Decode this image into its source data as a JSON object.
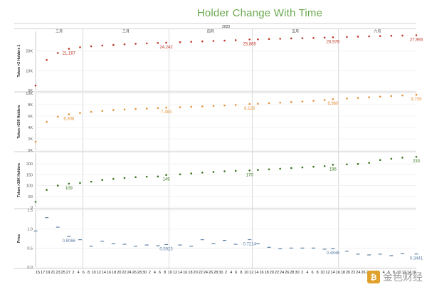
{
  "title": "Holder Change With Time",
  "chart_data": {
    "type": "scatter",
    "title": "Holder Change With Time",
    "year_label": "2023",
    "month_labels": [
      "三月",
      "三月",
      "四月",
      "五月",
      "六月"
    ],
    "x_tick_labels": [
      "15",
      "17",
      "19",
      "21",
      "23",
      "25",
      "27",
      "2",
      "4",
      "6",
      "8",
      "10",
      "12",
      "14",
      "16",
      "18",
      "20",
      "22",
      "24",
      "26",
      "28",
      "30",
      "2",
      "4",
      "6",
      "8",
      "10",
      "12",
      "14",
      "16",
      "18",
      "20",
      "22",
      "24",
      "26",
      "28",
      "30",
      "2",
      "4",
      "6",
      "8",
      "10",
      "12",
      "14",
      "16",
      "18",
      "20",
      "22",
      "24",
      "26",
      "28",
      "30",
      "2",
      "4",
      "6",
      "8",
      "10",
      "12",
      "14",
      "16",
      "18",
      "20",
      "22",
      "24",
      "26",
      "28",
      "30",
      "2",
      "4",
      "6",
      "8",
      "10",
      "12",
      "14",
      "16"
    ],
    "panels": [
      {
        "ylabel": "Token >2 Holders 1",
        "color": "#c0392b",
        "ylim": [
          0,
          30000
        ],
        "yticks": [
          0,
          10000,
          20000
        ],
        "ytick_labels": [
          "0K",
          "10K",
          "20K"
        ],
        "annotations": [
          {
            "day": 12,
            "value": 21167,
            "text": "21,167"
          },
          {
            "day": 47,
            "value": 24242,
            "text": "24,242"
          },
          {
            "day": 77,
            "value": 25885,
            "text": "25,885"
          },
          {
            "day": 107,
            "value": 26978,
            "text": "26,978"
          },
          {
            "day": 137,
            "value": 27993,
            "text": "27,993"
          }
        ]
      },
      {
        "ylabel": "Token >200 Holders",
        "color": "#e69138",
        "ylim": [
          0,
          10000
        ],
        "yticks": [
          0,
          2000,
          4000,
          6000,
          8000,
          10000
        ],
        "ytick_labels": [
          "0K",
          "2K",
          "4K",
          "6K",
          "8K",
          "10K"
        ],
        "annotations": [
          {
            "day": 12,
            "value": 6308,
            "text": "6,308"
          },
          {
            "day": 47,
            "value": 7483,
            "text": "7,483"
          },
          {
            "day": 77,
            "value": 8126,
            "text": "8,126"
          },
          {
            "day": 107,
            "value": 8980,
            "text": "8,980"
          },
          {
            "day": 137,
            "value": 9739,
            "text": "9,739"
          }
        ]
      },
      {
        "ylabel": "Token >10K Holders",
        "color": "#38761d",
        "ylim": [
          0,
          250
        ],
        "yticks": [
          0,
          50,
          100,
          150,
          200
        ],
        "ytick_labels": [
          "0",
          "50",
          "100",
          "150",
          "200"
        ],
        "annotations": [
          {
            "day": 12,
            "value": 109,
            "text": "109"
          },
          {
            "day": 47,
            "value": 149,
            "text": "149"
          },
          {
            "day": 77,
            "value": 170,
            "text": "170"
          },
          {
            "day": 107,
            "value": 196,
            "text": "196"
          },
          {
            "day": 137,
            "value": 233,
            "text": "233"
          }
        ]
      },
      {
        "ylabel": "Price",
        "color": "#5b7fa6",
        "ylim": [
          0,
          1.5
        ],
        "yticks": [
          0,
          0.5,
          1.0,
          1.5
        ],
        "ytick_labels": [
          "0.0",
          "0.5",
          "1.0",
          "1.5"
        ],
        "annotations": [
          {
            "day": 12,
            "value": 0.8066,
            "text": "0.8066"
          },
          {
            "day": 47,
            "value": 0.5923,
            "text": "0.5923"
          },
          {
            "day": 77,
            "value": 0.7214,
            "text": "0.7214"
          },
          {
            "day": 107,
            "value": 0.4846,
            "text": "0.4846"
          },
          {
            "day": 137,
            "value": 0.3441,
            "text": "0.3441"
          }
        ]
      }
    ],
    "x": [
      0,
      4,
      8,
      12,
      16,
      20,
      24,
      28,
      32,
      36,
      40,
      44,
      47,
      52,
      56,
      60,
      64,
      68,
      72,
      77,
      80,
      84,
      88,
      92,
      96,
      100,
      104,
      107,
      112,
      116,
      120,
      124,
      128,
      132,
      137
    ],
    "series": [
      {
        "name": "Token >2 Holders 1",
        "values": [
          2500,
          15500,
          19000,
          21167,
          21900,
          22400,
          22800,
          23100,
          23400,
          23700,
          23900,
          24100,
          24242,
          24500,
          24700,
          24900,
          25100,
          25300,
          25500,
          25885,
          25950,
          26100,
          26250,
          26400,
          26500,
          26650,
          26800,
          26978,
          27150,
          27300,
          27450,
          27600,
          27750,
          27850,
          27993
        ]
      },
      {
        "name": "Token >200 Holders",
        "values": [
          1500,
          5000,
          5900,
          6308,
          6550,
          6750,
          6900,
          7050,
          7150,
          7250,
          7320,
          7400,
          7483,
          7560,
          7630,
          7700,
          7780,
          7860,
          7950,
          8126,
          8170,
          8260,
          8360,
          8460,
          8560,
          8680,
          8800,
          8980,
          9080,
          9190,
          9300,
          9420,
          9520,
          9620,
          9739
        ]
      },
      {
        "name": "Token >10K Holders",
        "values": [
          25,
          80,
          100,
          109,
          112,
          118,
          126,
          131,
          135,
          139,
          141,
          142,
          149,
          152,
          156,
          160,
          163,
          166,
          168,
          170,
          172,
          175,
          178,
          181,
          184,
          187,
          190,
          196,
          198,
          200,
          205,
          218,
          224,
          229,
          233
        ]
      },
      {
        "name": "Price",
        "values": [
          0.95,
          1.3,
          1.05,
          0.8066,
          0.72,
          0.55,
          0.68,
          0.62,
          0.6,
          0.55,
          0.58,
          0.56,
          0.5923,
          0.58,
          0.55,
          0.72,
          0.62,
          0.7,
          0.6,
          0.7214,
          0.62,
          0.52,
          0.48,
          0.5,
          0.5,
          0.5,
          0.47,
          0.4846,
          0.42,
          0.34,
          0.32,
          0.34,
          0.3,
          0.36,
          0.3441
        ]
      }
    ],
    "grid": true
  },
  "watermark": {
    "text": "金色财经",
    "logo_glyph": "₿"
  }
}
